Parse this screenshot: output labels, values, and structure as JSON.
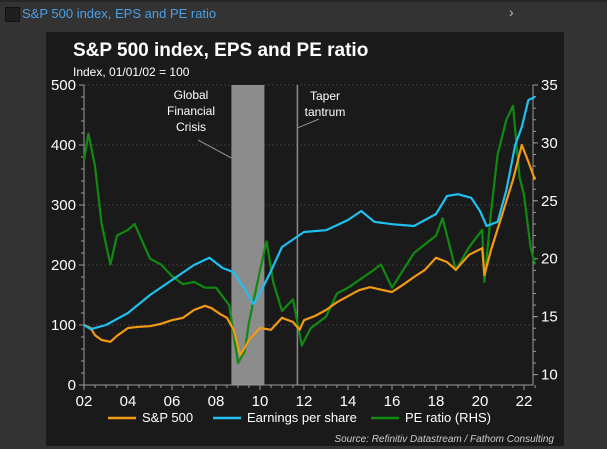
{
  "window": {
    "title": "S&P 500 index, EPS and PE ratio",
    "expand_icon": "chevron-right-icon"
  },
  "chart_data": {
    "type": "line",
    "title": "S&P 500 index, EPS and PE ratio",
    "subtitle": "Index, 01/01/02 = 100",
    "xlabel": "",
    "ylabel": "",
    "xlim": [
      2002,
      2022.6
    ],
    "ylim": [
      0,
      500
    ],
    "y2lim": [
      9.1,
      35
    ],
    "x_ticks": [
      2002,
      2004,
      2006,
      2008,
      2010,
      2012,
      2014,
      2016,
      2018,
      2020,
      2022
    ],
    "x_tick_labels": [
      "02",
      "04",
      "06",
      "08",
      "10",
      "12",
      "14",
      "16",
      "18",
      "20",
      "22"
    ],
    "y_ticks": [
      0,
      100,
      200,
      300,
      400,
      500
    ],
    "y_tick_labels": [
      "0",
      "100",
      "200",
      "300",
      "400",
      "500"
    ],
    "y2_ticks": [
      10,
      15,
      20,
      25,
      30,
      35
    ],
    "y2_tick_labels": [
      "10",
      "15",
      "20",
      "25",
      "30",
      "35"
    ],
    "grid": true,
    "legend_position": "bottom",
    "source": "Source: Refinitiv Datastream / Fathom Consulting",
    "annotations": [
      {
        "type": "band",
        "x_start": 2008.7,
        "x_end": 2010.2,
        "label": [
          "Global",
          "Financial",
          "Crisis"
        ],
        "color": "#8c8c8c"
      },
      {
        "type": "vline",
        "x": 2011.7,
        "label": [
          "Taper",
          "tantrum"
        ],
        "color": "#8c8c8c"
      }
    ],
    "series": [
      {
        "name": "S&P 500",
        "axis": "left",
        "color": "#f29a12",
        "x": [
          2002.0,
          2002.3,
          2002.5,
          2002.8,
          2003.2,
          2003.5,
          2004.0,
          2004.5,
          2005.0,
          2005.5,
          2006.0,
          2006.5,
          2007.0,
          2007.5,
          2007.8,
          2008.2,
          2008.5,
          2008.8,
          2009.1,
          2009.3,
          2009.5,
          2010.0,
          2010.5,
          2011.0,
          2011.5,
          2011.8,
          2012.0,
          2012.5,
          2013.0,
          2013.5,
          2014.0,
          2014.5,
          2015.0,
          2015.6,
          2016.0,
          2016.5,
          2017.0,
          2017.5,
          2018.0,
          2018.5,
          2018.9,
          2019.5,
          2020.1,
          2020.2,
          2020.5,
          2021.0,
          2021.5,
          2021.9,
          2022.2,
          2022.5
        ],
        "values": [
          100,
          95,
          83,
          75,
          72,
          82,
          95,
          97,
          98,
          102,
          108,
          112,
          125,
          132,
          128,
          118,
          112,
          92,
          50,
          62,
          75,
          95,
          92,
          112,
          105,
          92,
          108,
          115,
          125,
          138,
          148,
          158,
          163,
          158,
          155,
          167,
          180,
          192,
          212,
          205,
          192,
          217,
          228,
          183,
          225,
          283,
          342,
          400,
          372,
          342
        ]
      },
      {
        "name": "Earnings per share",
        "axis": "left",
        "color": "#1fc0ef",
        "x": [
          2002.0,
          2002.3,
          2003.0,
          2004.0,
          2005.0,
          2006.0,
          2007.0,
          2007.7,
          2008.3,
          2008.8,
          2009.3,
          2009.7,
          2010.1,
          2010.5,
          2011.0,
          2012.0,
          2013.0,
          2014.0,
          2014.6,
          2015.2,
          2016.0,
          2017.0,
          2018.0,
          2018.5,
          2019.0,
          2019.6,
          2020.0,
          2020.3,
          2020.8,
          2021.2,
          2021.6,
          2021.9,
          2022.2,
          2022.5
        ],
        "values": [
          100,
          93,
          100,
          120,
          150,
          175,
          200,
          212,
          195,
          188,
          160,
          135,
          160,
          190,
          230,
          255,
          258,
          275,
          290,
          272,
          268,
          265,
          285,
          315,
          318,
          312,
          290,
          265,
          272,
          325,
          400,
          430,
          475,
          480
        ]
      },
      {
        "name": "PE ratio (RHS)",
        "axis": "right",
        "color": "#108a10",
        "x": [
          2002.0,
          2002.2,
          2002.5,
          2002.8,
          2003.2,
          2003.5,
          2004.0,
          2004.3,
          2005.0,
          2005.5,
          2006.0,
          2006.5,
          2007.0,
          2007.5,
          2008.0,
          2008.6,
          2009.0,
          2009.3,
          2009.5,
          2010.0,
          2010.3,
          2010.6,
          2011.0,
          2011.5,
          2011.9,
          2012.3,
          2013.0,
          2013.5,
          2014.0,
          2015.0,
          2015.5,
          2016.0,
          2016.5,
          2017.0,
          2018.0,
          2018.3,
          2018.9,
          2019.5,
          2020.1,
          2020.2,
          2020.5,
          2020.8,
          2021.2,
          2021.5,
          2021.8,
          2022.0,
          2022.3,
          2022.5
        ],
        "values": [
          28.5,
          30.8,
          28,
          23,
          19.5,
          22,
          22.5,
          23,
          20,
          19.5,
          18.5,
          17.8,
          18,
          17.5,
          17.5,
          16,
          11,
          12,
          14.5,
          19,
          21.5,
          18,
          15.5,
          16.5,
          12.5,
          14,
          15,
          17,
          17.5,
          18.8,
          19.5,
          17.5,
          19,
          20.5,
          22,
          23.5,
          19,
          21,
          22.5,
          18,
          24,
          29,
          32,
          33.2,
          27,
          25.5,
          21,
          19.5
        ]
      }
    ]
  }
}
